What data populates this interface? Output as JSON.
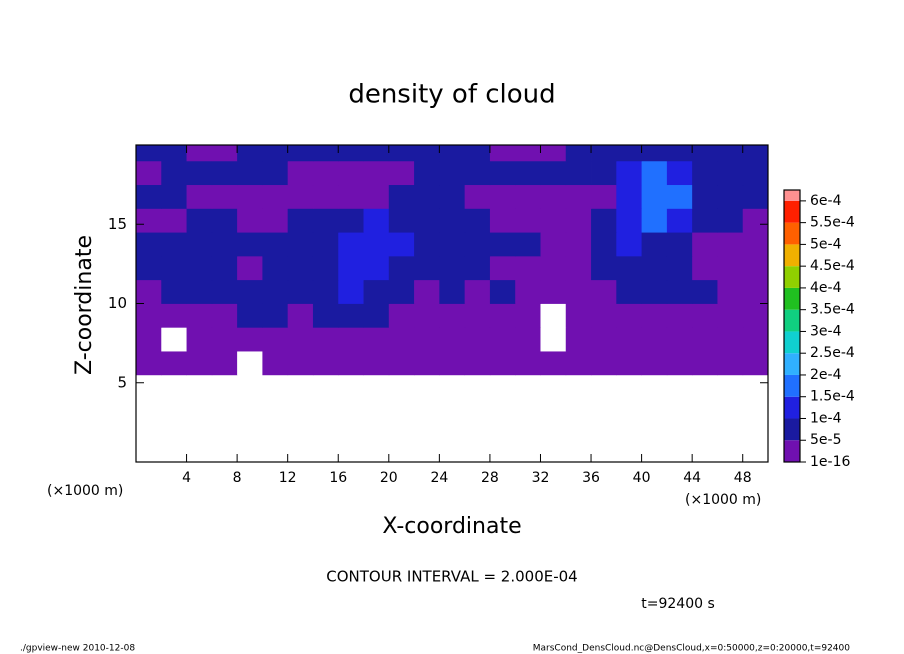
{
  "chart_data": {
    "type": "contour",
    "title": "density of cloud",
    "x_label": "X-coordinate",
    "y_label": "Z-coordinate",
    "x_unit": "(×1000 m)",
    "contour_note": "CONTOUR INTERVAL = 2.000E-04",
    "time_note": "t=92400 s",
    "footer_left": "./gpview-new  2010-12-08",
    "footer_right": "MarsCond_DensCloud.nc@DensCloud,x=0:50000,z=0:20000,t=92400",
    "xlim": [
      0,
      50
    ],
    "ylim": [
      0,
      20
    ],
    "xticks": [
      4,
      8,
      12,
      16,
      20,
      24,
      28,
      32,
      36,
      40,
      44,
      48
    ],
    "yticks": [
      5,
      10,
      15
    ],
    "x_edges": [
      0,
      2,
      4,
      6,
      8,
      10,
      12,
      14,
      16,
      18,
      20,
      22,
      24,
      26,
      28,
      30,
      32,
      34,
      36,
      38,
      40,
      42,
      44,
      46,
      48,
      50
    ],
    "y_edges": [
      5.5,
      7,
      8.5,
      10,
      11.5,
      13,
      14.5,
      16,
      17.5,
      19,
      20
    ],
    "levels": [
      {
        "value": 1e-16,
        "label": "1e-16"
      },
      {
        "value": 5e-05,
        "label": "5e-5"
      },
      {
        "value": 0.0001,
        "label": "1e-4"
      },
      {
        "value": 0.00015,
        "label": "1.5e-4"
      },
      {
        "value": 0.0002,
        "label": "2e-4"
      },
      {
        "value": 0.00025,
        "label": "2.5e-4"
      },
      {
        "value": 0.0003,
        "label": "3e-4"
      },
      {
        "value": 0.00035,
        "label": "3.5e-4"
      },
      {
        "value": 0.0004,
        "label": "4e-4"
      },
      {
        "value": 0.00045,
        "label": "4.5e-4"
      },
      {
        "value": 0.0005,
        "label": "5e-4"
      },
      {
        "value": 0.00055,
        "label": "5.5e-4"
      },
      {
        "value": 0.0006,
        "label": "6e-4"
      }
    ],
    "colors": [
      "#7010b0",
      "#1a1aa0",
      "#2020e0",
      "#2070ff",
      "#30b0ff",
      "#10d0d0",
      "#10d080",
      "#20c020",
      "#90d000",
      "#f0b000",
      "#ff6000",
      "#ff2000",
      "#ff9090"
    ],
    "values": [
      [
        1e-05,
        1e-05,
        1e-05,
        1e-05,
        0,
        1e-05,
        1e-05,
        1e-05,
        1e-05,
        1e-05,
        1e-05,
        1e-05,
        1e-05,
        1e-05,
        1e-05,
        1e-05,
        1e-05,
        1e-05,
        1e-05,
        1e-05,
        1e-05,
        1e-05,
        1e-05,
        1e-05,
        1e-05
      ],
      [
        1e-05,
        0,
        1e-05,
        1e-05,
        1e-05,
        1e-05,
        1e-05,
        1e-05,
        1e-05,
        1e-05,
        1e-05,
        1e-05,
        1e-05,
        1e-05,
        1e-05,
        1e-05,
        0,
        1e-05,
        1e-05,
        1e-05,
        1e-05,
        1e-05,
        1e-05,
        1e-05,
        1e-05
      ],
      [
        1e-05,
        1e-05,
        1e-05,
        1e-05,
        7e-05,
        7e-05,
        1e-05,
        7e-05,
        7e-05,
        7e-05,
        1e-05,
        1e-05,
        1e-05,
        1e-05,
        1e-05,
        1e-05,
        0,
        1e-05,
        1e-05,
        1e-05,
        1e-05,
        1e-05,
        1e-05,
        1e-05,
        1e-05
      ],
      [
        1e-05,
        7e-05,
        7e-05,
        7e-05,
        7e-05,
        7e-05,
        7e-05,
        7e-05,
        0.00012,
        7e-05,
        7e-05,
        1e-05,
        7e-05,
        1e-05,
        7e-05,
        1e-05,
        1e-05,
        1e-05,
        1e-05,
        7e-05,
        7e-05,
        7e-05,
        7e-05,
        1e-05,
        1e-05
      ],
      [
        7e-05,
        7e-05,
        7e-05,
        7e-05,
        1e-05,
        7e-05,
        7e-05,
        7e-05,
        0.00012,
        0.00012,
        7e-05,
        7e-05,
        7e-05,
        7e-05,
        1e-05,
        1e-05,
        1e-05,
        1e-05,
        7e-05,
        7e-05,
        7e-05,
        7e-05,
        1e-05,
        1e-05,
        1e-05
      ],
      [
        7e-05,
        7e-05,
        7e-05,
        7e-05,
        7e-05,
        7e-05,
        7e-05,
        7e-05,
        0.00012,
        0.00012,
        0.00012,
        7e-05,
        7e-05,
        7e-05,
        7e-05,
        7e-05,
        1e-05,
        1e-05,
        7e-05,
        0.00012,
        7e-05,
        7e-05,
        1e-05,
        1e-05,
        1e-05
      ],
      [
        1e-05,
        1e-05,
        7e-05,
        7e-05,
        1e-05,
        1e-05,
        7e-05,
        7e-05,
        7e-05,
        0.00012,
        7e-05,
        7e-05,
        7e-05,
        7e-05,
        1e-05,
        1e-05,
        1e-05,
        1e-05,
        7e-05,
        0.00012,
        0.00017,
        0.00012,
        7e-05,
        7e-05,
        1e-05
      ],
      [
        7e-05,
        7e-05,
        1e-05,
        1e-05,
        1e-05,
        1e-05,
        1e-05,
        1e-05,
        1e-05,
        1e-05,
        7e-05,
        7e-05,
        7e-05,
        1e-05,
        1e-05,
        1e-05,
        1e-05,
        1e-05,
        1e-05,
        0.00012,
        0.00017,
        0.00017,
        7e-05,
        7e-05,
        7e-05
      ],
      [
        1e-05,
        7e-05,
        7e-05,
        7e-05,
        7e-05,
        7e-05,
        1e-05,
        1e-05,
        1e-05,
        1e-05,
        1e-05,
        7e-05,
        7e-05,
        7e-05,
        7e-05,
        7e-05,
        7e-05,
        7e-05,
        7e-05,
        0.00012,
        0.00017,
        0.00012,
        7e-05,
        7e-05,
        7e-05
      ],
      [
        7e-05,
        7e-05,
        1e-05,
        1e-05,
        7e-05,
        7e-05,
        7e-05,
        7e-05,
        7e-05,
        7e-05,
        7e-05,
        7e-05,
        7e-05,
        7e-05,
        1e-05,
        1e-05,
        1e-05,
        7e-05,
        7e-05,
        7e-05,
        7e-05,
        7e-05,
        7e-05,
        7e-05,
        7e-05
      ]
    ]
  }
}
